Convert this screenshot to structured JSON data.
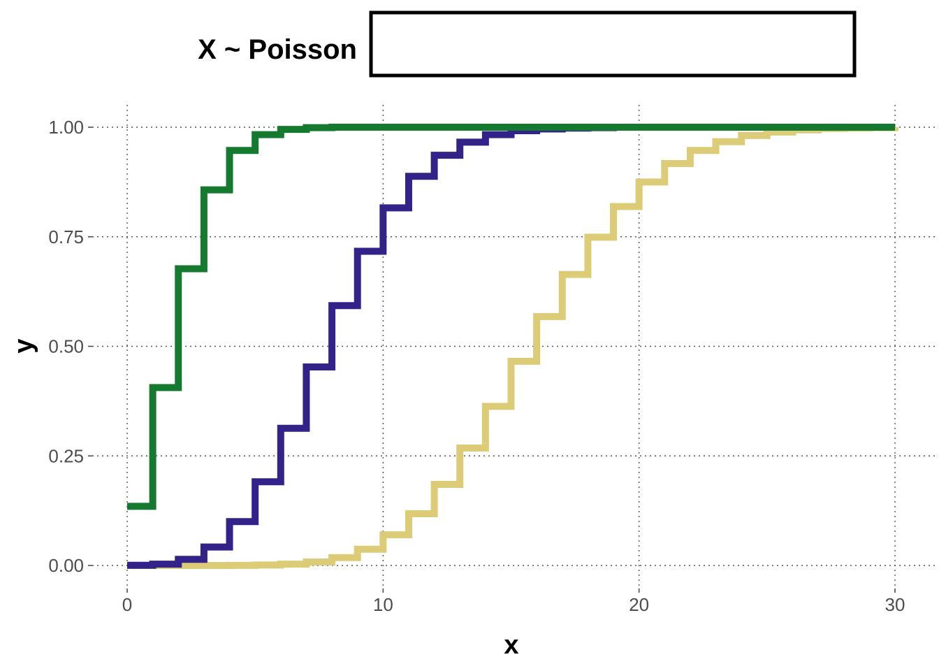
{
  "legend": {
    "title": "X ~ Poisson",
    "box_value": ""
  },
  "chart_data": {
    "type": "line",
    "step": true,
    "xlabel": "x",
    "ylabel": "y",
    "xlim": [
      0,
      30
    ],
    "ylim": [
      0,
      1
    ],
    "x_ticks": [
      0,
      10,
      20,
      30
    ],
    "x_tick_labels": [
      "0",
      "10",
      "20",
      "30"
    ],
    "y_ticks": [
      0,
      0.25,
      0.5,
      0.75,
      1
    ],
    "y_tick_labels": [
      "0.00",
      "0.25",
      "0.50",
      "0.75",
      "1.00"
    ],
    "grid": true,
    "legend_position": "top",
    "x": [
      0,
      1,
      2,
      3,
      4,
      5,
      6,
      7,
      8,
      9,
      10,
      11,
      12,
      13,
      14,
      15,
      16,
      17,
      18,
      19,
      20,
      21,
      22,
      23,
      24,
      25,
      26,
      27,
      28,
      29,
      30
    ],
    "series": [
      {
        "color": "#15792f",
        "values": [
          0.135,
          0.406,
          0.677,
          0.857,
          0.947,
          0.983,
          0.995,
          0.999,
          1,
          1,
          1,
          1,
          1,
          1,
          1,
          1,
          1,
          1,
          1,
          1,
          1,
          1,
          1,
          1,
          1,
          1,
          1,
          1,
          1,
          1,
          1
        ]
      },
      {
        "color": "#332288",
        "values": [
          0.0003,
          0.003,
          0.014,
          0.042,
          0.1,
          0.191,
          0.313,
          0.453,
          0.593,
          0.717,
          0.816,
          0.888,
          0.936,
          0.966,
          0.983,
          0.992,
          0.996,
          0.998,
          0.999,
          1,
          1,
          1,
          1,
          1,
          1,
          1,
          1,
          1,
          1,
          1,
          1
        ]
      },
      {
        "color": "#ddcc77",
        "values": [
          0,
          0,
          0,
          0,
          0.0002,
          0.001,
          0.003,
          0.008,
          0.018,
          0.037,
          0.07,
          0.118,
          0.185,
          0.268,
          0.363,
          0.466,
          0.568,
          0.664,
          0.749,
          0.819,
          0.875,
          0.917,
          0.947,
          0.967,
          0.981,
          0.989,
          0.994,
          0.997,
          0.998,
          0.999,
          1
        ]
      }
    ]
  }
}
